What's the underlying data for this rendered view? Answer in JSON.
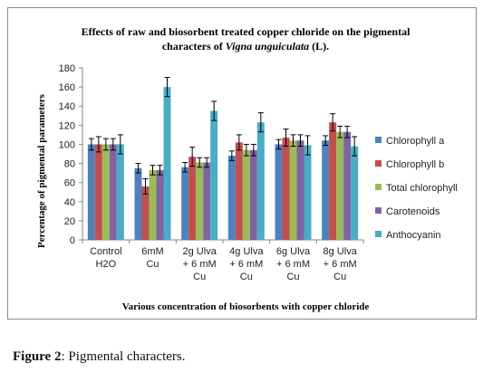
{
  "colors": {
    "chlorophyll_a": "#4F81BD",
    "chlorophyll_b": "#C0504D",
    "total_chlorophyll": "#9BBB59",
    "carotenoids": "#8064A2",
    "anthocyanin": "#4BACC6"
  },
  "chart_data": {
    "type": "bar",
    "title_line1": "Effects of raw and biosorbent treated copper chloride on the pigmental",
    "title_line2_prefix": "characters of ",
    "title_line2_italic": "Vigna unguiculata",
    "title_line2_suffix": " (L).",
    "xlabel": "Various concentration of biosorbents with copper chloride",
    "ylabel": "Percentage of pigmental parameters",
    "ylim": [
      0,
      180
    ],
    "yticks": [
      0,
      20,
      40,
      60,
      80,
      100,
      120,
      140,
      160,
      180
    ],
    "grid": false,
    "legend_position": "right",
    "categories": [
      [
        "Control",
        "H2O"
      ],
      [
        "6mM",
        "Cu"
      ],
      [
        "2g Ulva",
        "+ 6 mM",
        "Cu"
      ],
      [
        "4g Ulva",
        "+ 6 mM",
        "Cu"
      ],
      [
        "6g Ulva",
        "+ 6 mM",
        "Cu"
      ],
      [
        "8g Ulva",
        "+ 6 mM",
        "Cu"
      ]
    ],
    "series": [
      {
        "name": "Chlorophyll a",
        "color_key": "chlorophyll_a",
        "values": [
          100,
          75,
          76,
          88,
          100,
          104
        ],
        "errors": [
          6,
          5,
          5,
          5,
          5,
          5
        ]
      },
      {
        "name": "Chlorophyll b",
        "color_key": "chlorophyll_b",
        "values": [
          100,
          56,
          87,
          102,
          107,
          123
        ],
        "errors": [
          8,
          8,
          10,
          8,
          9,
          9
        ]
      },
      {
        "name": "Total chlorophyll",
        "color_key": "total_chlorophyll",
        "values": [
          100,
          73,
          81,
          94,
          104,
          113
        ],
        "errors": [
          6,
          5,
          5,
          6,
          6,
          6
        ]
      },
      {
        "name": "Carotenoids",
        "color_key": "carotenoids",
        "values": [
          100,
          73,
          81,
          94,
          104,
          113
        ],
        "errors": [
          6,
          5,
          5,
          6,
          6,
          6
        ]
      },
      {
        "name": "Anthocyanin",
        "color_key": "anthocyanin",
        "values": [
          100,
          160,
          135,
          123,
          99,
          98
        ],
        "errors": [
          10,
          10,
          10,
          10,
          10,
          10
        ]
      }
    ]
  },
  "figure_caption": {
    "label": "Figure 2",
    "text": ": Pigmental characters."
  }
}
